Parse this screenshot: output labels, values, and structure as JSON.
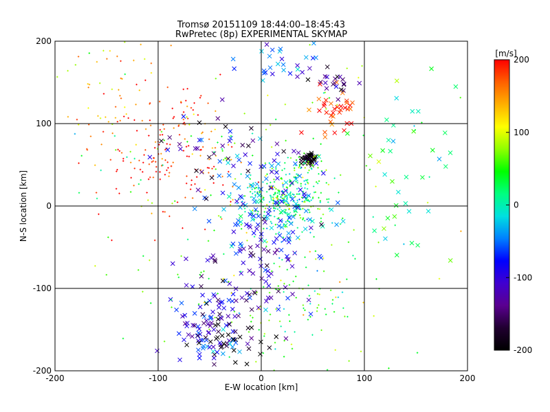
{
  "chart_data": {
    "type": "scatter",
    "title": "Tromsø 20151109 18:44:00–18:45:43",
    "subtitle": "RwPretec (8p) EXPERIMENTAL SKYMAP",
    "xlabel": "E-W location [km]",
    "ylabel": "N-S location [km]",
    "xlim": [
      -200,
      200
    ],
    "ylim": [
      -200,
      200
    ],
    "x_ticks": [
      -200,
      -100,
      0,
      100,
      200
    ],
    "y_ticks": [
      -200,
      -100,
      0,
      100,
      200
    ],
    "grid": true,
    "colorbar": {
      "label": "[m/s]",
      "range": [
        -200,
        200
      ],
      "ticks": [
        200,
        100,
        0,
        -100,
        -200
      ],
      "colormap": [
        "#000000",
        "#200030",
        "#5a0090",
        "#4000d0",
        "#0000ff",
        "#0080ff",
        "#00e0e0",
        "#00ff80",
        "#00ff00",
        "#90ff00",
        "#ffff00",
        "#ffb000",
        "#ff6000",
        "#ff0000"
      ]
    },
    "markers": {
      "large": "x",
      "small": "+"
    },
    "clusters": [
      {
        "cx": 47,
        "cy": 57,
        "sx": 4,
        "sy": 3,
        "n": 40,
        "v": -200,
        "marker": "x"
      },
      {
        "cx": 45,
        "cy": 50,
        "sx": 8,
        "sy": 8,
        "n": 25,
        "v": 60,
        "marker": "+"
      },
      {
        "cx": 20,
        "cy": 10,
        "sx": 20,
        "sy": 20,
        "n": 300,
        "v": 20,
        "marker": "+"
      },
      {
        "cx": 5,
        "cy": 0,
        "sx": 30,
        "sy": 30,
        "n": 120,
        "v": -50,
        "marker": "x"
      },
      {
        "cx": -90,
        "cy": 60,
        "sx": 40,
        "sy": 40,
        "n": 180,
        "v": 190,
        "marker": "+"
      },
      {
        "cx": -55,
        "cy": -140,
        "sx": 20,
        "sy": 30,
        "n": 90,
        "v": -90,
        "marker": "x"
      },
      {
        "cx": -35,
        "cy": -160,
        "sx": 20,
        "sy": 20,
        "n": 40,
        "v": -200,
        "marker": "x"
      },
      {
        "cx": 70,
        "cy": 120,
        "sx": 12,
        "sy": 15,
        "n": 35,
        "v": 180,
        "marker": "x"
      },
      {
        "cx": 70,
        "cy": 150,
        "sx": 10,
        "sy": 8,
        "n": 20,
        "v": -140,
        "marker": "x"
      },
      {
        "cx": 25,
        "cy": 175,
        "sx": 20,
        "sy": 15,
        "n": 30,
        "v": -60,
        "marker": "x"
      },
      {
        "cx": 0,
        "cy": -80,
        "sx": 25,
        "sy": 40,
        "n": 80,
        "v": -110,
        "marker": "x"
      },
      {
        "cx": 40,
        "cy": -120,
        "sx": 30,
        "sy": 40,
        "n": 80,
        "v": 40,
        "marker": "+"
      },
      {
        "cx": -160,
        "cy": 160,
        "sx": 40,
        "sy": 40,
        "n": 60,
        "v": 120,
        "marker": "+"
      },
      {
        "cx": 140,
        "cy": 50,
        "sx": 30,
        "sy": 60,
        "n": 40,
        "v": 30,
        "marker": "x"
      },
      {
        "cx": -40,
        "cy": 70,
        "sx": 30,
        "sy": 20,
        "n": 40,
        "v": -130,
        "marker": "x"
      },
      {
        "cx": 0,
        "cy": 0,
        "sx": 110,
        "sy": 110,
        "n": 220,
        "v": 60,
        "marker": "+"
      }
    ]
  }
}
